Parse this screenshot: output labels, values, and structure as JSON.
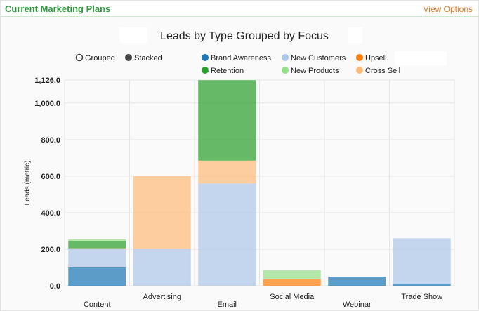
{
  "panel": {
    "title": "Current Marketing Plans",
    "view_options": "View Options"
  },
  "chart_data": {
    "type": "bar",
    "stacked": true,
    "title": "Leads by Type Grouped by Focus",
    "ylabel": "Leads (metric)",
    "xlabel": "",
    "ylim": [
      0,
      1126
    ],
    "yticks": [
      0,
      200,
      400,
      600,
      800,
      1000,
      1126
    ],
    "ytick_labels": [
      "0.0",
      "200.0",
      "400.0",
      "600.0",
      "800.0",
      "1,000.0",
      "1,126.0"
    ],
    "grid": true,
    "mode_options": [
      {
        "label": "Grouped",
        "selected": false
      },
      {
        "label": "Stacked",
        "selected": true
      }
    ],
    "categories": [
      "Content",
      "Advertising",
      "Email",
      "Social Media",
      "Webinar",
      "Trade Show"
    ],
    "series": [
      {
        "name": "Brand Awareness",
        "color": "#1f77b4",
        "values": [
          100,
          0,
          0,
          0,
          50,
          10
        ]
      },
      {
        "name": "Retention",
        "color": "#2ca02c",
        "values": [
          40,
          0,
          440,
          0,
          0,
          0
        ]
      },
      {
        "name": "New Customers",
        "color": "#aec7e8",
        "values": [
          100,
          200,
          560,
          0,
          0,
          250
        ]
      },
      {
        "name": "New Products",
        "color": "#98df8a",
        "values": [
          10,
          0,
          0,
          50,
          0,
          0
        ]
      },
      {
        "name": "Upsell",
        "color": "#ff7f0e",
        "values": [
          0,
          0,
          0,
          35,
          0,
          0
        ]
      },
      {
        "name": "Cross Sell",
        "color": "#ffbb78",
        "values": [
          5,
          400,
          125,
          0,
          0,
          0
        ]
      }
    ],
    "stack_order": [
      "Brand Awareness",
      "New Customers",
      "Upsell",
      "Cross Sell",
      "Retention",
      "New Products"
    ]
  }
}
